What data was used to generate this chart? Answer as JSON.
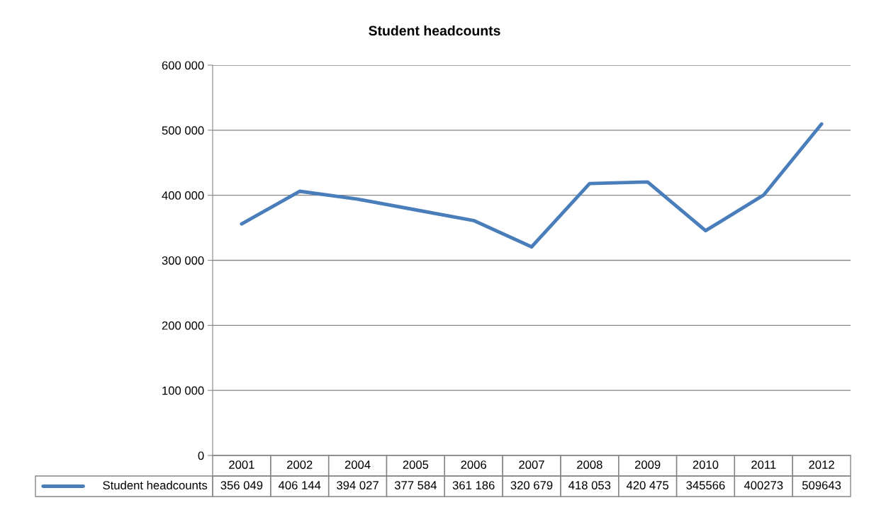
{
  "chart_data": {
    "type": "line",
    "title": "Student headcounts",
    "categories": [
      "2001",
      "2002",
      "2004",
      "2005",
      "2006",
      "2007",
      "2008",
      "2009",
      "2010",
      "2011",
      "2012"
    ],
    "series": [
      {
        "name": "Student headcounts",
        "color": "#4a7ebb",
        "values": [
          356049,
          406144,
          394027,
          377584,
          361186,
          320679,
          418053,
          420475,
          345566,
          400273,
          509643
        ],
        "value_labels": [
          "356 049",
          "406 144",
          "394 027",
          "377 584",
          "361 186",
          "320 679",
          "418 053",
          "420 475",
          "345566",
          "400273",
          "509643"
        ]
      }
    ],
    "ylim": [
      0,
      600000
    ],
    "yticks": [
      {
        "value": 0,
        "label": "0"
      },
      {
        "value": 100000,
        "label": "100 000"
      },
      {
        "value": 200000,
        "label": "200 000"
      },
      {
        "value": 300000,
        "label": "300 000"
      },
      {
        "value": 400000,
        "label": "400 000"
      },
      {
        "value": 500000,
        "label": "500 000"
      },
      {
        "value": 600000,
        "label": "600 000"
      }
    ],
    "grid": "y",
    "legend": "bottom",
    "marker": "none",
    "line_style": "solid"
  }
}
